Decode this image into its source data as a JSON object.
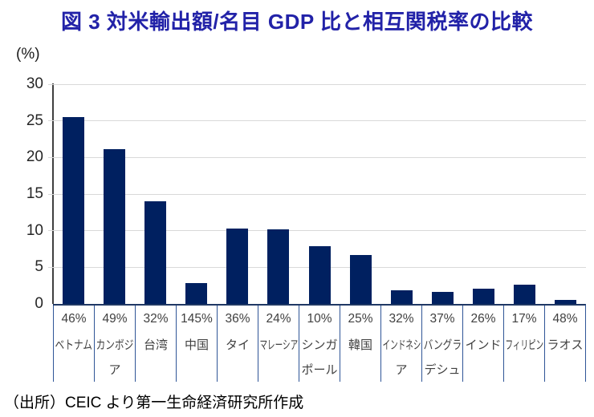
{
  "title": "図 3  対米輸出額/名目 GDP 比と相互関税率の比較",
  "source_note": "（出所）CEIC より第一生命経済研究所作成",
  "colors": {
    "title": "#2222A8",
    "bar": "#002060",
    "x_axis": "#1F3864",
    "table_border": "#2F5597",
    "gridline": "#D9D9D9",
    "y_axis_line": "#404040",
    "label_text": "#404040"
  },
  "chart_data": {
    "type": "bar",
    "title": "図 3  対米輸出額/名目 GDP 比と相互関税率の比較",
    "ylabel": "(%)",
    "ylim": [
      0,
      30
    ],
    "yticks": [
      0,
      5,
      10,
      15,
      20,
      25,
      30
    ],
    "grid": true,
    "legend_position": "none",
    "bar_color": "#002060",
    "categories": [
      "ベトナム",
      "カンボジア",
      "台湾",
      "中国",
      "タイ",
      "マレーシア",
      "シンガポール",
      "韓国",
      "インドネシア",
      "バングラデシュ",
      "インド",
      "フィリピン",
      "ラオス"
    ],
    "category_display_lines": [
      [
        "ベトナム"
      ],
      [
        "カンボジ",
        "ア"
      ],
      [
        "台湾"
      ],
      [
        "中国"
      ],
      [
        "タイ"
      ],
      [
        "マレーシア"
      ],
      [
        "シンガ",
        "ポール"
      ],
      [
        "韓国"
      ],
      [
        "インドネシ",
        "ア"
      ],
      [
        "バングラ",
        "デシュ"
      ],
      [
        "インド"
      ],
      [
        "フィリピン"
      ],
      [
        "ラオス"
      ]
    ],
    "tariff_rate_labels": [
      "46%",
      "49%",
      "32%",
      "145%",
      "36%",
      "24%",
      "10%",
      "25%",
      "32%",
      "37%",
      "26%",
      "17%",
      "48%"
    ],
    "values": [
      25.5,
      21.1,
      14.0,
      2.8,
      10.3,
      10.2,
      7.9,
      6.7,
      1.9,
      1.6,
      2.1,
      2.6,
      0.5
    ]
  }
}
